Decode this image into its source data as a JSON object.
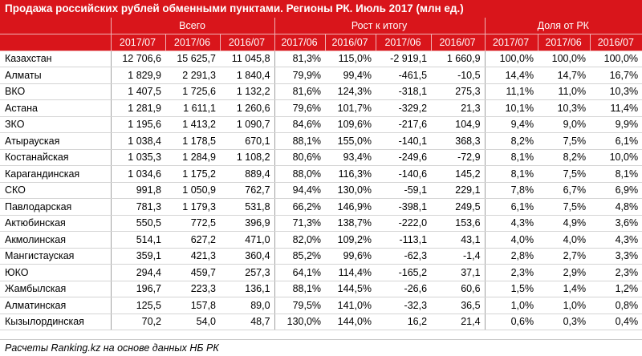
{
  "title": "Продажа российских рублей обменными пунктами. Регионы РК. Июль 2017 (млн ед.)",
  "group_headers": [
    "Всего",
    "Рост к итогу",
    "Доля от РК"
  ],
  "sub_headers": [
    "2017/07",
    "2017/06",
    "2016/07",
    "2017/06",
    "2016/07",
    "2017/06",
    "2016/07",
    "2017/07",
    "2017/06",
    "2016/07"
  ],
  "rows": [
    {
      "name": "Казахстан",
      "cells": [
        "12 706,6",
        "15 625,7",
        "11 045,8",
        "81,3%",
        "115,0%",
        "-2 919,1",
        "1 660,9",
        "100,0%",
        "100,0%",
        "100,0%"
      ]
    },
    {
      "name": "Алматы",
      "cells": [
        "1 829,9",
        "2 291,3",
        "1 840,4",
        "79,9%",
        "99,4%",
        "-461,5",
        "-10,5",
        "14,4%",
        "14,7%",
        "16,7%"
      ]
    },
    {
      "name": "ВКО",
      "cells": [
        "1 407,5",
        "1 725,6",
        "1 132,2",
        "81,6%",
        "124,3%",
        "-318,1",
        "275,3",
        "11,1%",
        "11,0%",
        "10,3%"
      ]
    },
    {
      "name": "Астана",
      "cells": [
        "1 281,9",
        "1 611,1",
        "1 260,6",
        "79,6%",
        "101,7%",
        "-329,2",
        "21,3",
        "10,1%",
        "10,3%",
        "11,4%"
      ]
    },
    {
      "name": "ЗКО",
      "cells": [
        "1 195,6",
        "1 413,2",
        "1 090,7",
        "84,6%",
        "109,6%",
        "-217,6",
        "104,9",
        "9,4%",
        "9,0%",
        "9,9%"
      ]
    },
    {
      "name": "Атырауская",
      "cells": [
        "1 038,4",
        "1 178,5",
        "670,1",
        "88,1%",
        "155,0%",
        "-140,1",
        "368,3",
        "8,2%",
        "7,5%",
        "6,1%"
      ]
    },
    {
      "name": "Костанайская",
      "cells": [
        "1 035,3",
        "1 284,9",
        "1 108,2",
        "80,6%",
        "93,4%",
        "-249,6",
        "-72,9",
        "8,1%",
        "8,2%",
        "10,0%"
      ]
    },
    {
      "name": "Карагандинская",
      "cells": [
        "1 034,6",
        "1 175,2",
        "889,4",
        "88,0%",
        "116,3%",
        "-140,6",
        "145,2",
        "8,1%",
        "7,5%",
        "8,1%"
      ]
    },
    {
      "name": "СКО",
      "cells": [
        "991,8",
        "1 050,9",
        "762,7",
        "94,4%",
        "130,0%",
        "-59,1",
        "229,1",
        "7,8%",
        "6,7%",
        "6,9%"
      ]
    },
    {
      "name": "Павлодарская",
      "cells": [
        "781,3",
        "1 179,3",
        "531,8",
        "66,2%",
        "146,9%",
        "-398,1",
        "249,5",
        "6,1%",
        "7,5%",
        "4,8%"
      ]
    },
    {
      "name": "Актюбинская",
      "cells": [
        "550,5",
        "772,5",
        "396,9",
        "71,3%",
        "138,7%",
        "-222,0",
        "153,6",
        "4,3%",
        "4,9%",
        "3,6%"
      ]
    },
    {
      "name": "Акмолинская",
      "cells": [
        "514,1",
        "627,2",
        "471,0",
        "82,0%",
        "109,2%",
        "-113,1",
        "43,1",
        "4,0%",
        "4,0%",
        "4,3%"
      ]
    },
    {
      "name": "Мангистауская",
      "cells": [
        "359,1",
        "421,3",
        "360,4",
        "85,2%",
        "99,6%",
        "-62,3",
        "-1,4",
        "2,8%",
        "2,7%",
        "3,3%"
      ]
    },
    {
      "name": "ЮКО",
      "cells": [
        "294,4",
        "459,7",
        "257,3",
        "64,1%",
        "114,4%",
        "-165,2",
        "37,1",
        "2,3%",
        "2,9%",
        "2,3%"
      ]
    },
    {
      "name": "Жамбылская",
      "cells": [
        "196,7",
        "223,3",
        "136,1",
        "88,1%",
        "144,5%",
        "-26,6",
        "60,6",
        "1,5%",
        "1,4%",
        "1,2%"
      ]
    },
    {
      "name": "Алматинская",
      "cells": [
        "125,5",
        "157,8",
        "89,0",
        "79,5%",
        "141,0%",
        "-32,3",
        "36,5",
        "1,0%",
        "1,0%",
        "0,8%"
      ]
    },
    {
      "name": "Кызылординская",
      "cells": [
        "70,2",
        "54,0",
        "48,7",
        "130,0%",
        "144,0%",
        "16,2",
        "21,4",
        "0,6%",
        "0,3%",
        "0,4%"
      ]
    }
  ],
  "footer": "Расчеты Ranking.kz на основе данных НБ РК",
  "colors": {
    "header_bg": "#d9151b",
    "header_text": "#ffffff"
  }
}
